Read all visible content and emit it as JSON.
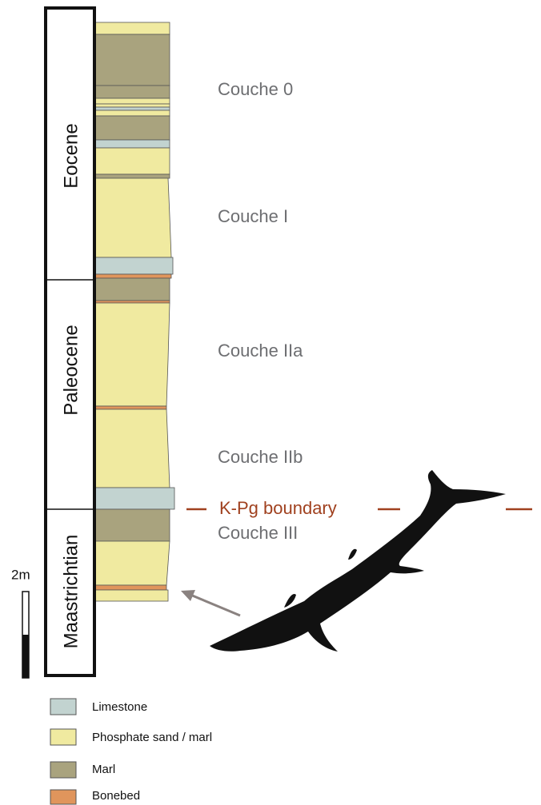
{
  "epochs": [
    "Eocene",
    "Paleocene",
    "Maastrichtian"
  ],
  "units": [
    "Couche 0",
    "Couche I",
    "Couche IIa",
    "Couche IIb",
    "Couche III"
  ],
  "boundary": "K-Pg boundary",
  "scale": "2m",
  "legend": [
    "Limestone",
    "Phosphate sand / marl",
    "Marl",
    "Bonebed"
  ]
}
